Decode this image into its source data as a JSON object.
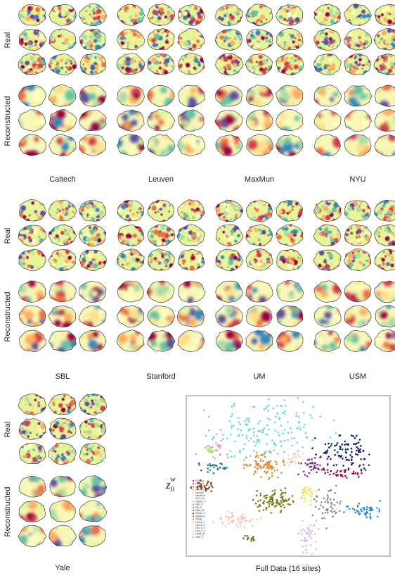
{
  "groups": [
    {
      "row_labels": [
        "Real",
        "Reconstructed"
      ],
      "sites": [
        "Caltech",
        "Leuven",
        "MaxMun",
        "NYU"
      ]
    },
    {
      "row_labels": [
        "Real",
        "Reconstructed"
      ],
      "sites": [
        "SBL",
        "Stanford",
        "UM",
        "USM"
      ]
    },
    {
      "row_labels": [
        "Real",
        "Reconstructed"
      ],
      "sites": [
        "Yale"
      ]
    }
  ],
  "scatter": {
    "title": "Full Data (16 sites)",
    "y_label": {
      "base": "z",
      "sub": "0",
      "sup": "w"
    },
    "legend": [
      "CMU_a",
      "CMU_b",
      "Caltech",
      "KKI_01",
      "Leuven",
      "MaxMun",
      "NYU_00",
      "OHSU_0",
      "Olin_0",
      "Pitt_0",
      "SBL_00",
      "SDSU_0",
      "Stanford",
      "Trinity",
      "UCLA_1",
      "UCLA_2",
      "UM_1_0",
      "UM_2_0",
      "USM_00",
      "Yale_0"
    ]
  }
}
